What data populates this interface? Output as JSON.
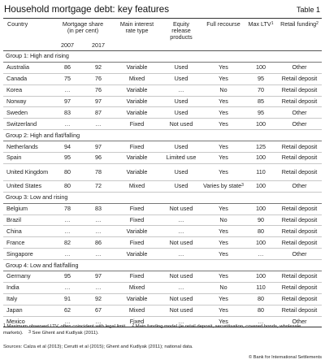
{
  "title": "Household mortgage debt: key features",
  "table_number": "Table 1",
  "headers": {
    "country": "Country",
    "mortgage_share": "Mortgage share",
    "mortgage_share_unit": "(in per cent)",
    "year1": "2007",
    "year2": "2017",
    "rate_type": "Main interest rate type",
    "equity_release": "Equity release products",
    "full_recourse": "Full recourse",
    "max_ltv": "Max LTV",
    "max_ltv_note": "1",
    "retail_funding": "Retail funding",
    "retail_funding_note": "2"
  },
  "groups": [
    {
      "label": "Group 1: High and rising",
      "rows": [
        {
          "country": "Australia",
          "y2007": "86",
          "y2017": "92",
          "rate": "Variable",
          "equity": "Used",
          "recourse": "Yes",
          "ltv": "100",
          "funding": "Other"
        },
        {
          "country": "Canada",
          "y2007": "75",
          "y2017": "76",
          "rate": "Mixed",
          "equity": "Used",
          "recourse": "Yes",
          "ltv": "95",
          "funding": "Retail deposit"
        },
        {
          "country": "Korea",
          "y2007": "…",
          "y2017": "76",
          "rate": "Variable",
          "equity": "…",
          "recourse": "No",
          "ltv": "70",
          "funding": "Retail deposit"
        },
        {
          "country": "Norway",
          "y2007": "97",
          "y2017": "97",
          "rate": "Variable",
          "equity": "Used",
          "recourse": "Yes",
          "ltv": "85",
          "funding": "Retail deposit"
        },
        {
          "country": "Sweden",
          "y2007": "83",
          "y2017": "87",
          "rate": "Variable",
          "equity": "Used",
          "recourse": "Yes",
          "ltv": "95",
          "funding": "Other"
        },
        {
          "country": "Switzerland",
          "y2007": "…",
          "y2017": "…",
          "rate": "Fixed",
          "equity": "Not used",
          "recourse": "Yes",
          "ltv": "100",
          "funding": "Other"
        }
      ]
    },
    {
      "label": "Group 2: High and flat/falling",
      "rows": [
        {
          "country": "Netherlands",
          "y2007": "94",
          "y2017": "97",
          "rate": "Fixed",
          "equity": "Used",
          "recourse": "Yes",
          "ltv": "125",
          "funding": "Retail deposit"
        },
        {
          "country": "Spain",
          "y2007": "95",
          "y2017": "96",
          "rate": "Variable",
          "equity": "Limited use",
          "recourse": "Yes",
          "ltv": "100",
          "funding": "Retail deposit"
        },
        {
          "country": "United Kingdom",
          "y2007": "80",
          "y2017": "78",
          "rate": "Variable",
          "equity": "Used",
          "recourse": "Yes",
          "ltv": "110",
          "funding": "Retail deposit",
          "wrap": true
        },
        {
          "country": "United States",
          "y2007": "80",
          "y2017": "72",
          "rate": "Mixed",
          "equity": "Used",
          "recourse": "Varies by state",
          "recourse_note": "3",
          "ltv": "100",
          "funding": "Other"
        }
      ]
    },
    {
      "label": "Group 3: Low and rising",
      "rows": [
        {
          "country": "Belgium",
          "y2007": "78",
          "y2017": "83",
          "rate": "Fixed",
          "equity": "Not used",
          "recourse": "Yes",
          "ltv": "100",
          "funding": "Retail deposit"
        },
        {
          "country": "Brazil",
          "y2007": "…",
          "y2017": "…",
          "rate": "Fixed",
          "equity": "…",
          "recourse": "No",
          "ltv": "90",
          "funding": "Retail deposit"
        },
        {
          "country": "China",
          "y2007": "…",
          "y2017": "…",
          "rate": "Variable",
          "equity": "…",
          "recourse": "Yes",
          "ltv": "80",
          "funding": "Retail deposit"
        },
        {
          "country": "France",
          "y2007": "82",
          "y2017": "86",
          "rate": "Fixed",
          "equity": "Not used",
          "recourse": "Yes",
          "ltv": "100",
          "funding": "Retail deposit"
        },
        {
          "country": "Singapore",
          "y2007": "…",
          "y2017": "…",
          "rate": "Variable",
          "equity": "…",
          "recourse": "Yes",
          "ltv": "…",
          "funding": "Other"
        }
      ]
    },
    {
      "label": "Group 4: Low and flat/falling",
      "rows": [
        {
          "country": "Germany",
          "y2007": "95",
          "y2017": "97",
          "rate": "Fixed",
          "equity": "Not used",
          "recourse": "Yes",
          "ltv": "100",
          "funding": "Retail deposit"
        },
        {
          "country": "India",
          "y2007": "…",
          "y2017": "…",
          "rate": "Mixed",
          "equity": "…",
          "recourse": "No",
          "ltv": "110",
          "funding": "Retail deposit"
        },
        {
          "country": "Italy",
          "y2007": "91",
          "y2017": "92",
          "rate": "Variable",
          "equity": "Not used",
          "recourse": "Yes",
          "ltv": "80",
          "funding": "Retail deposit"
        },
        {
          "country": "Japan",
          "y2007": "62",
          "y2017": "67",
          "rate": "Mixed",
          "equity": "Not used",
          "recourse": "Yes",
          "ltv": "80",
          "funding": "Retail deposit"
        },
        {
          "country": "Mexico",
          "y2007": "…",
          "y2017": "…",
          "rate": "Fixed",
          "equity": "…",
          "recourse": "Yes",
          "ltv": "…",
          "funding": "Other"
        }
      ]
    }
  ],
  "footnotes": {
    "n1_mark": "1",
    "n1_text": "Maximum observed LTV, often coincident with legal limit.",
    "n2_mark": "2",
    "n2_text": "Main funding model (ie retail deposit, securitisation, covered bonds, wholesale markets).",
    "n3_mark": "3",
    "n3_text": "See Ghent and Kudlyak (2011)."
  },
  "sources": "Sources: Calza et al (2013); Cerutti et al (2015); Ghent and Kudlyak (2011); national data.",
  "copyright": "© Bank for International Settlements"
}
